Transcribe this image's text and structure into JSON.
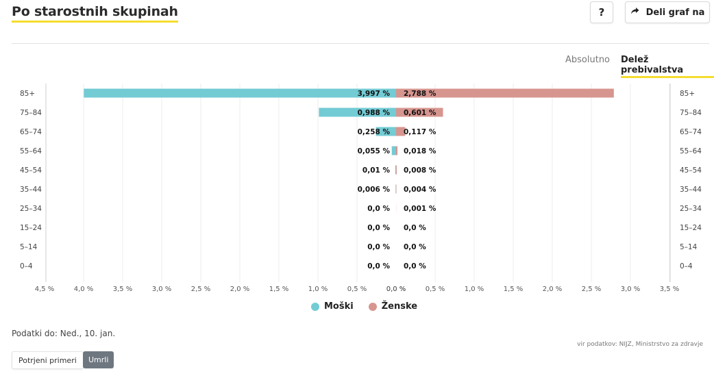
{
  "header": {
    "title": "Po starostnih skupinah",
    "help_label": "?",
    "share_label": "Deli graf na"
  },
  "tabs": [
    {
      "label": "Absolutno"
    },
    {
      "label": "Delež prebivalstva"
    }
  ],
  "colors": {
    "male": "#73cbd4",
    "female": "#d7958f",
    "accent": "#f5dc2d"
  },
  "chart_data": {
    "type": "bar",
    "orientation": "horizontal-population-pyramid",
    "categories": [
      "85+",
      "75–84",
      "65–74",
      "55–64",
      "45–54",
      "35–44",
      "25–34",
      "15–24",
      "5–14",
      "0–4"
    ],
    "series": [
      {
        "name": "Moški",
        "values": [
          3.997,
          0.988,
          0.258,
          0.055,
          0.01,
          0.006,
          0.0,
          0.0,
          0.0,
          0.0
        ],
        "labels": [
          "3,997 %",
          "0,988 %",
          "0,258 %",
          "0,055 %",
          "0,01 %",
          "0,006 %",
          "0,0 %",
          "0,0 %",
          "0,0 %",
          "0,0 %"
        ]
      },
      {
        "name": "Ženske",
        "values": [
          2.788,
          0.601,
          0.117,
          0.018,
          0.008,
          0.004,
          0.001,
          0.0,
          0.0,
          0.0
        ],
        "labels": [
          "2,788 %",
          "0,601 %",
          "0,117 %",
          "0,018 %",
          "0,008 %",
          "0,004 %",
          "0,001 %",
          "0,0 %",
          "0,0 %",
          "0,0 %"
        ]
      }
    ],
    "x_ticks_left": [
      "4,5 %",
      "4,0 %",
      "3,5 %",
      "3,0 %",
      "2,5 %",
      "2,0 %",
      "1,5 %",
      "1,0 %",
      "0,5 %",
      "0,0 %"
    ],
    "x_ticks_right": [
      "0,0 %",
      "0,5 %",
      "1,0 %",
      "1,5 %",
      "2,0 %",
      "2,5 %",
      "3,0 %",
      "3,5 %"
    ],
    "xlim_left": [
      0,
      4.5
    ],
    "xlim_right": [
      0,
      3.5
    ],
    "tick_step": 0.5,
    "grid": true,
    "legend": "bottom-center"
  },
  "legend": {
    "male": "Moški",
    "female": "Ženske"
  },
  "footer": {
    "updated": "Podatki do: Ned., 10. jan.",
    "source": "vir podatkov: NIJZ, Ministrstvo za zdravje",
    "button_confirmed": "Potrjeni primeri",
    "button_deaths": "Umrli"
  }
}
